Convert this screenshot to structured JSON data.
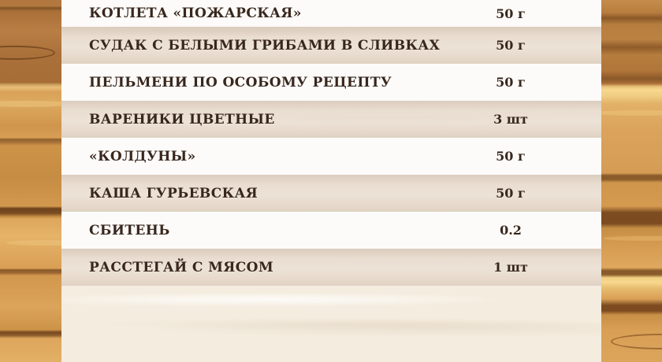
{
  "menu": {
    "items": [
      {
        "name": "КОТЛЕТА «ПОЖАРСКАЯ»",
        "portion": "50 г"
      },
      {
        "name": "СУДАК С БЕЛЫМИ ГРИБАМИ В СЛИВКАХ",
        "portion": "50 г"
      },
      {
        "name": "ПЕЛЬМЕНИ ПО ОСОБОМУ РЕЦЕПТУ",
        "portion": "50 г"
      },
      {
        "name": "ВАРЕНИКИ ЦВЕТНЫЕ",
        "portion": "3 шт"
      },
      {
        "name": "«КОЛДУНЫ»",
        "portion": "50 г"
      },
      {
        "name": "КАША ГУРЬЕВСКАЯ",
        "portion": "50 г"
      },
      {
        "name": "СБИТЕНЬ",
        "portion": "0.2"
      },
      {
        "name": "РАССТЕГАЙ С МЯСОМ",
        "portion": "1 шт"
      }
    ]
  },
  "colors": {
    "text": "#38271d",
    "band_light": "#fcfbf9",
    "band_beige": "#e9ddd0",
    "paper": "#f4ecde",
    "wood_light": "#d89f55",
    "wood_dark": "#a86e37",
    "wood_streak_dark": "#7c4b20",
    "wood_highlight": "#f6d88e"
  }
}
